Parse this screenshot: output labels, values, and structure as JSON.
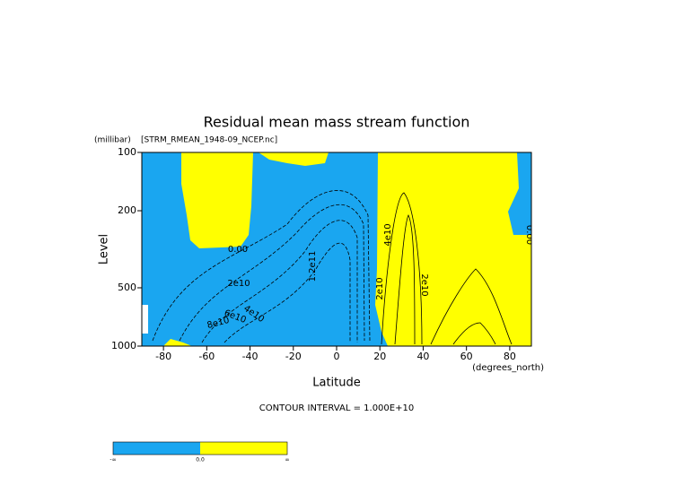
{
  "chart_data": {
    "type": "contour",
    "title": "Residual mean mass stream function",
    "subtitle": "[STRM_RMEAN_1948-09_NCEP.nc]",
    "y_units": "(millibar)",
    "y_label": "Level",
    "x_label": "Latitude",
    "x_units": "(degrees_north)",
    "footnote": "CONTOUR INTERVAL = 1.000E+10",
    "xlim": [
      -90,
      90
    ],
    "xticks": [
      -80,
      -60,
      -40,
      -20,
      0,
      20,
      40,
      60,
      80
    ],
    "ylim": [
      1000,
      100
    ],
    "yticks": [
      100,
      200,
      500,
      1000
    ],
    "yscale": "log",
    "negative_color": "#1aa6f0",
    "positive_color": "#ffff00",
    "contour_labels": [
      "0.00",
      "2e10",
      "4e10",
      "6e10",
      "8e10",
      "1.2e11",
      "4e10",
      "2e10",
      "2e10",
      "0.00"
    ],
    "colorbar_labels": [
      "-∞",
      "0.0",
      "∞"
    ]
  }
}
